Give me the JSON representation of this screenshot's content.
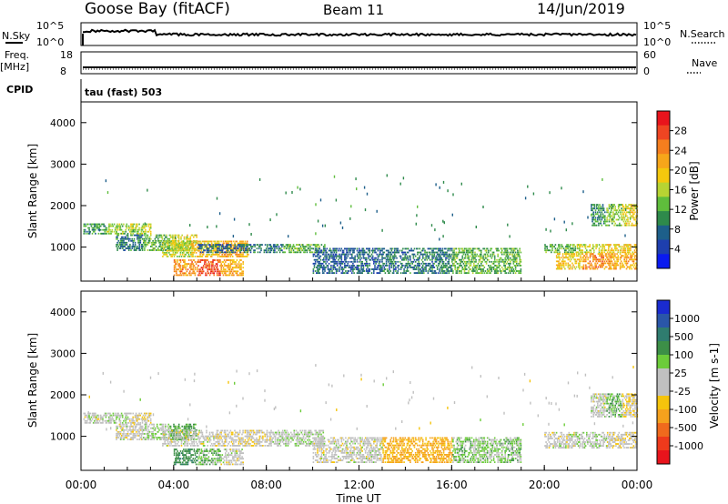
{
  "header": {
    "station": "Goose Bay (fitACF)",
    "beam": "Beam 11",
    "date": "14/Jun/2019"
  },
  "panels": {
    "nsky": {
      "left_label": "N.Sky",
      "right_label": "N.Search",
      "ticks_left": [
        "10^5",
        "10^0"
      ],
      "ticks_right": [
        "10^5",
        "10^0"
      ]
    },
    "freq": {
      "left_label_1": "Freq.",
      "left_label_2": "[MHz]",
      "right_label": "Nave",
      "ticks_left": [
        "18",
        "8"
      ],
      "ticks_right": [
        "60",
        "0"
      ]
    },
    "cpid": {
      "label": "CPID",
      "value": "tau (fast) 503"
    }
  },
  "colorbars": {
    "power": {
      "label": "Power [dB]",
      "ticks": [
        "28",
        "24",
        "20",
        "16",
        "12",
        "8",
        "4"
      ],
      "colors": [
        "#e8141c",
        "#ef4522",
        "#f57e1e",
        "#f7a61a",
        "#f4c80d",
        "#b7d433",
        "#5fbd3c",
        "#2e8a4b",
        "#1d5f8a",
        "#1e3fae",
        "#0a1af0"
      ]
    },
    "velocity": {
      "label": "Velocity [m s-1]",
      "ticks": [
        "1000",
        "500",
        "100",
        "25",
        "-25",
        "-100",
        "-500",
        "-1000"
      ],
      "colors": [
        "#1a2bd0",
        "#2a56a8",
        "#2f7c6f",
        "#3c8f47",
        "#6ccc3a",
        "#c0c0c0",
        "#c0c0c0",
        "#f5c40c",
        "#f5a11d",
        "#f06a1d",
        "#ee3a1c",
        "#e8141c"
      ]
    }
  },
  "chart_data": [
    {
      "type": "heatmap",
      "title": "",
      "xlabel": "Time UT",
      "ylabel": "Slant Range [km]",
      "xticks": [
        "00:00",
        "04:00",
        "08:00",
        "12:00",
        "16:00",
        "20:00",
        "00:00"
      ],
      "yticks": [
        "1000",
        "2000",
        "3000",
        "4000"
      ],
      "ylim": [
        180,
        4500
      ],
      "xlim_hours": [
        0,
        24
      ],
      "colorbar": "Power [dB]",
      "bands": [
        {
          "x0": 0.1,
          "x1": 3.0,
          "y0": 1300,
          "y1": 1550,
          "values": [
            10,
            14,
            16
          ]
        },
        {
          "x0": 1.5,
          "x1": 5.0,
          "y0": 900,
          "y1": 1300,
          "values": [
            8,
            12,
            18
          ]
        },
        {
          "x0": 3.5,
          "x1": 7.2,
          "y0": 750,
          "y1": 1150,
          "values": [
            16,
            20,
            22
          ]
        },
        {
          "x0": 4.0,
          "x1": 7.0,
          "y0": 300,
          "y1": 700,
          "values": [
            24,
            28,
            22
          ]
        },
        {
          "x0": 5.0,
          "x1": 10.5,
          "y0": 850,
          "y1": 1050,
          "values": [
            6,
            8,
            12
          ]
        },
        {
          "x0": 10.0,
          "x1": 19.0,
          "y0": 350,
          "y1": 950,
          "values": [
            6,
            8,
            12
          ]
        },
        {
          "x0": 20.0,
          "x1": 24.0,
          "y0": 850,
          "y1": 1050,
          "values": [
            12,
            16,
            20
          ]
        },
        {
          "x0": 20.5,
          "x1": 24.0,
          "y0": 450,
          "y1": 850,
          "values": [
            20,
            24,
            22
          ]
        },
        {
          "x0": 22.0,
          "x1": 24.0,
          "y0": 1500,
          "y1": 2000,
          "values": [
            10,
            14,
            18
          ]
        }
      ]
    },
    {
      "type": "heatmap",
      "title": "",
      "xlabel": "Time UT",
      "ylabel": "Slant Range [km]",
      "xticks": [
        "00:00",
        "04:00",
        "08:00",
        "12:00",
        "16:00",
        "20:00",
        "00:00"
      ],
      "yticks": [
        "1000",
        "2000",
        "3000",
        "4000"
      ],
      "ylim": [
        180,
        4500
      ],
      "xlim_hours": [
        0,
        24
      ],
      "colorbar": "Velocity [m s-1]",
      "bands": [
        {
          "x0": 0.1,
          "x1": 3.0,
          "y0": 1300,
          "y1": 1550,
          "values": [
            0,
            10,
            -10
          ]
        },
        {
          "x0": 1.5,
          "x1": 5.0,
          "y0": 900,
          "y1": 1300,
          "values": [
            0,
            20,
            60
          ]
        },
        {
          "x0": 3.5,
          "x1": 10.5,
          "y0": 750,
          "y1": 1150,
          "values": [
            0,
            -10,
            10
          ]
        },
        {
          "x0": 4.0,
          "x1": 7.0,
          "y0": 300,
          "y1": 700,
          "values": [
            80,
            40,
            0
          ]
        },
        {
          "x0": 10.0,
          "x1": 19.0,
          "y0": 350,
          "y1": 950,
          "values": [
            0,
            -60,
            30
          ]
        },
        {
          "x0": 20.0,
          "x1": 24.0,
          "y0": 700,
          "y1": 1100,
          "values": [
            0,
            10,
            -10
          ]
        },
        {
          "x0": 22.0,
          "x1": 24.0,
          "y0": 1450,
          "y1": 2000,
          "values": [
            0,
            40,
            -20
          ]
        }
      ]
    }
  ]
}
